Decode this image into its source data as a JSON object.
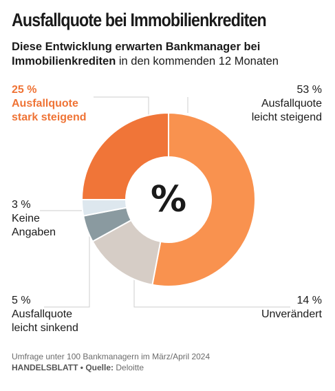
{
  "title": "Ausfallquote bei Immobilienkrediten",
  "subtitle": {
    "bold": "Diese Entwicklung erwarten Bankmanager bei Immobilienkrediten",
    "rest": "in den kommenden 12 Monaten"
  },
  "center_symbol": "%",
  "colors": {
    "stark_steigend": "#f07538",
    "leicht_steigend": "#f9924f",
    "unveraendert": "#d6cdc6",
    "leicht_sinkend": "#8a9aa0",
    "keine_angaben": "#dde7ee",
    "leader": "#cccccc"
  },
  "chart_data": {
    "type": "pie",
    "donut": true,
    "start": "top, clockwise",
    "slices": [
      {
        "value": 53,
        "label": "53 %",
        "name": "Ausfallquote leicht steigend",
        "color": "#f9924f"
      },
      {
        "value": 14,
        "label": "14 %",
        "name": "Unverändert",
        "color": "#d6cdc6"
      },
      {
        "value": 5,
        "label": "5 %",
        "name": "Ausfallquote leicht sinkend",
        "color": "#8a9aa0"
      },
      {
        "value": 3,
        "label": "3 %",
        "name": "Keine Angaben",
        "color": "#dde7ee"
      },
      {
        "value": 25,
        "label": "25 %",
        "name": "Ausfallquote stark steigend",
        "color": "#f07538"
      }
    ]
  },
  "labels": {
    "leicht_steigend": {
      "value": "53 %",
      "line1": "Ausfallquote",
      "line2": "leicht steigend"
    },
    "stark_steigend": {
      "value": "25 %",
      "line1": "Ausfallquote",
      "line2": "stark steigend"
    },
    "keine_angaben": {
      "value": "3 %",
      "line1": "Keine",
      "line2": "Angaben"
    },
    "leicht_sinkend": {
      "value": "5 %",
      "line1": "Ausfallquote",
      "line2": "leicht sinkend"
    },
    "unveraendert": {
      "value": "14 %",
      "line1": "Unverändert"
    }
  },
  "footer": {
    "note": "Umfrage unter 100 Bankmanagern im März/April 2024",
    "brand": "HANDELSBLATT",
    "separator": "•",
    "source_label": "Quelle:",
    "source": "Deloitte"
  }
}
